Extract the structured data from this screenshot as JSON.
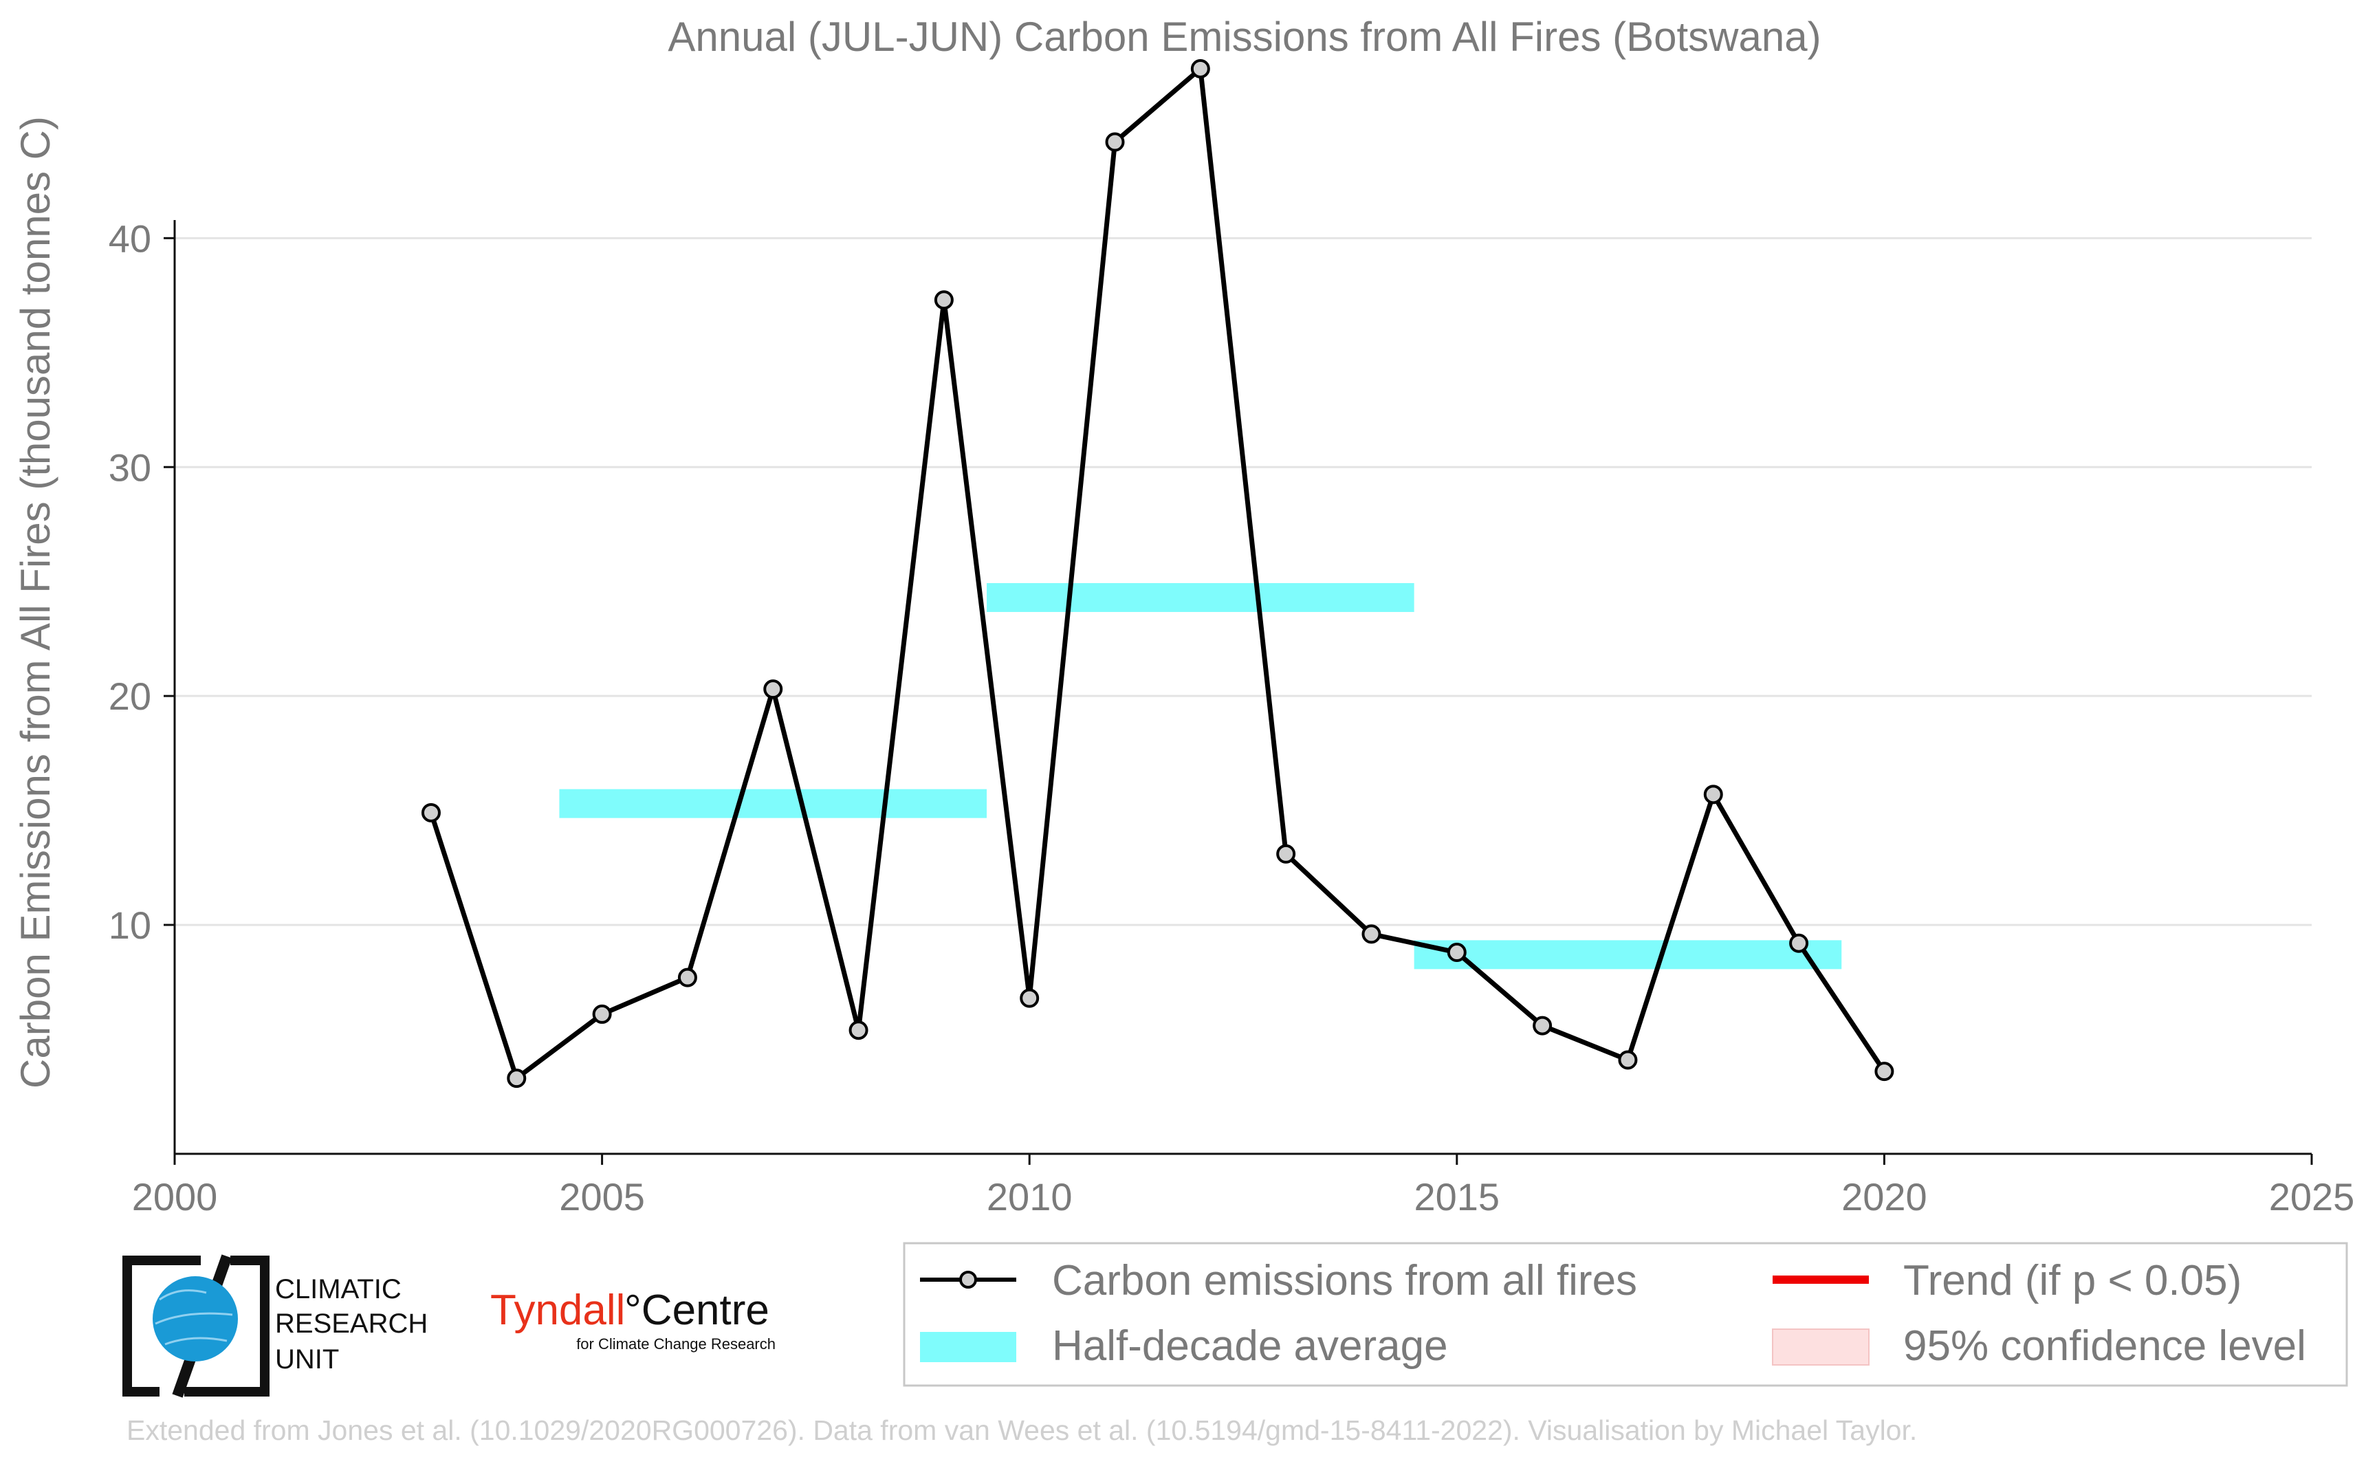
{
  "chart_data": {
    "type": "line",
    "title": "Annual (JUL-JUN) Carbon Emissions from All Fires (Botswana)",
    "xlabel": "",
    "ylabel": "Carbon Emissions from All Fires (thousand tonnes C)",
    "xlim": [
      2000,
      2025
    ],
    "ylim": [
      0,
      48
    ],
    "x_ticks": [
      "2000",
      "2005",
      "2010",
      "2015",
      "2020",
      "2025"
    ],
    "y_ticks": [
      "10",
      "20",
      "30",
      "40"
    ],
    "grid": "horizontal",
    "legend_position": "bottom",
    "series": [
      {
        "name": "Carbon emissions from all fires",
        "color": "#000000",
        "marker_fill": "#d0d0d0",
        "x": [
          2003,
          2004,
          2005,
          2006,
          2007,
          2008,
          2009,
          2010,
          2011,
          2012,
          2013,
          2014,
          2015,
          2016,
          2017,
          2018,
          2019,
          2020
        ],
        "y": [
          14.9,
          3.3,
          6.1,
          7.7,
          20.3,
          5.4,
          37.3,
          6.8,
          44.2,
          47.4,
          13.1,
          9.6,
          8.8,
          5.6,
          4.1,
          15.7,
          9.2,
          3.6
        ]
      }
    ],
    "half_decade_average": {
      "name": "Half-decade average",
      "color": "#7ffcfc",
      "segments": [
        {
          "x_start": 2004.5,
          "x_end": 2009.5,
          "value": 15.3
        },
        {
          "x_start": 2009.5,
          "x_end": 2014.5,
          "value": 24.3
        },
        {
          "x_start": 2014.5,
          "x_end": 2019.5,
          "value": 8.7
        }
      ]
    },
    "legend": [
      {
        "key": "line",
        "label": "Carbon emissions from all fires"
      },
      {
        "key": "trend",
        "label": "Trend (if p < 0.05)",
        "color": "#ee0000"
      },
      {
        "key": "avg",
        "label": "Half-decade average",
        "color": "#7ffcfc"
      },
      {
        "key": "ci",
        "label": "95% confidence level",
        "color": "#fde0e0"
      }
    ]
  },
  "logos": {
    "cru_line1": "CLIMATIC",
    "cru_line2": "RESEARCH",
    "cru_line3": "UNIT",
    "tyndall_main": "Tyndall",
    "tyndall_centre": "°Centre",
    "tyndall_sub": "for Climate Change Research"
  },
  "credit": "Extended from Jones et al. (10.1029/2020RG000726). Data from van Wees et al. (10.5194/gmd-15-8411-2022). Visualisation by Michael Taylor."
}
